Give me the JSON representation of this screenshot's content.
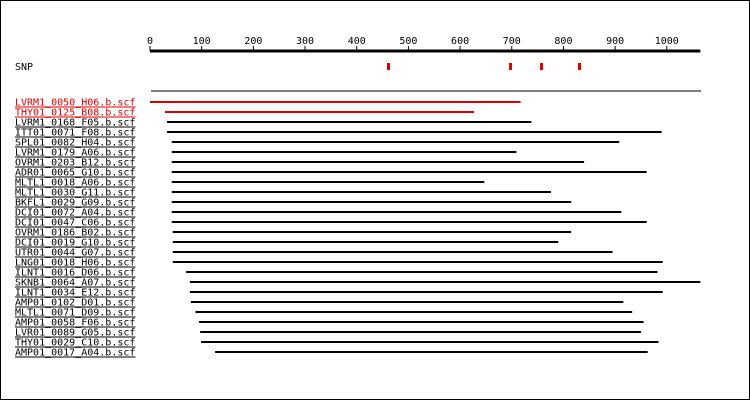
{
  "colors": {
    "background": "#ffffff",
    "foreground": "#000000",
    "highlight": "#e00000"
  },
  "ruler": {
    "min": 0,
    "max": 1065,
    "ticks": [
      0,
      100,
      200,
      300,
      400,
      500,
      600,
      700,
      800,
      900,
      1000
    ],
    "tick_labels": [
      "0",
      "100",
      "200",
      "300",
      "400",
      "500",
      "600",
      "700",
      "800",
      "900",
      "1000"
    ]
  },
  "snp_track": {
    "label": "SNP",
    "positions": [
      460,
      696,
      756,
      830
    ]
  },
  "reads": [
    {
      "name": "LVRM1_0050_H06.b.scf",
      "start": 0,
      "end": 717,
      "highlighted": true
    },
    {
      "name": "THY01_0125_B08.b.scf",
      "start": 29,
      "end": 627,
      "highlighted": true
    },
    {
      "name": "LVRM1_0168_F05.b.scf",
      "start": 33,
      "end": 738,
      "highlighted": false
    },
    {
      "name": "ITT01_0071_F08.b.scf",
      "start": 33,
      "end": 990,
      "highlighted": false
    },
    {
      "name": "SPL01_0082_H04.b.scf",
      "start": 42,
      "end": 908,
      "highlighted": false
    },
    {
      "name": "LVRM1_0179_A06.b.scf",
      "start": 42,
      "end": 709,
      "highlighted": false
    },
    {
      "name": "OVRM1_0203_B12.b.scf",
      "start": 42,
      "end": 840,
      "highlighted": false
    },
    {
      "name": "ADR01_0065_G10.b.scf",
      "start": 42,
      "end": 961,
      "highlighted": false
    },
    {
      "name": "MLTL1_0018_A06.b.scf",
      "start": 42,
      "end": 647,
      "highlighted": false
    },
    {
      "name": "MLTL1_0030_G11.b.scf",
      "start": 42,
      "end": 776,
      "highlighted": false
    },
    {
      "name": "BKFL1_0029_G09.b.scf",
      "start": 42,
      "end": 815,
      "highlighted": false
    },
    {
      "name": "DCI01_0072_A04.b.scf",
      "start": 42,
      "end": 912,
      "highlighted": false
    },
    {
      "name": "DCI01_0047_C06.b.scf",
      "start": 42,
      "end": 961,
      "highlighted": false
    },
    {
      "name": "OVRM1_0186_B02.b.scf",
      "start": 44,
      "end": 815,
      "highlighted": false
    },
    {
      "name": "DCI01_0019_G10.b.scf",
      "start": 44,
      "end": 790,
      "highlighted": false
    },
    {
      "name": "UTR01_0044_G07.b.scf",
      "start": 44,
      "end": 895,
      "highlighted": false
    },
    {
      "name": "LNG01_0018_H06.b.scf",
      "start": 44,
      "end": 992,
      "highlighted": false
    },
    {
      "name": "ILNT1_0016_D06.b.scf",
      "start": 70,
      "end": 982,
      "highlighted": false
    },
    {
      "name": "SKNB1_0064_A07.b.scf",
      "start": 77,
      "end": 1065,
      "highlighted": false
    },
    {
      "name": "ILNT1_0034_E12.b.scf",
      "start": 77,
      "end": 992,
      "highlighted": false
    },
    {
      "name": "AMP01_0102_D01.b.scf",
      "start": 79,
      "end": 916,
      "highlighted": false
    },
    {
      "name": "MLTL1_0071_D09.b.scf",
      "start": 88,
      "end": 933,
      "highlighted": false
    },
    {
      "name": "AMP01_0058_F06.b.scf",
      "start": 95,
      "end": 955,
      "highlighted": false
    },
    {
      "name": "LVR01_0089_G05.b.scf",
      "start": 97,
      "end": 950,
      "highlighted": false
    },
    {
      "name": "THY01_0029_C10.b.scf",
      "start": 99,
      "end": 984,
      "highlighted": false
    },
    {
      "name": "AMP01_0017_A04.b.scf",
      "start": 126,
      "end": 963,
      "highlighted": false
    }
  ]
}
